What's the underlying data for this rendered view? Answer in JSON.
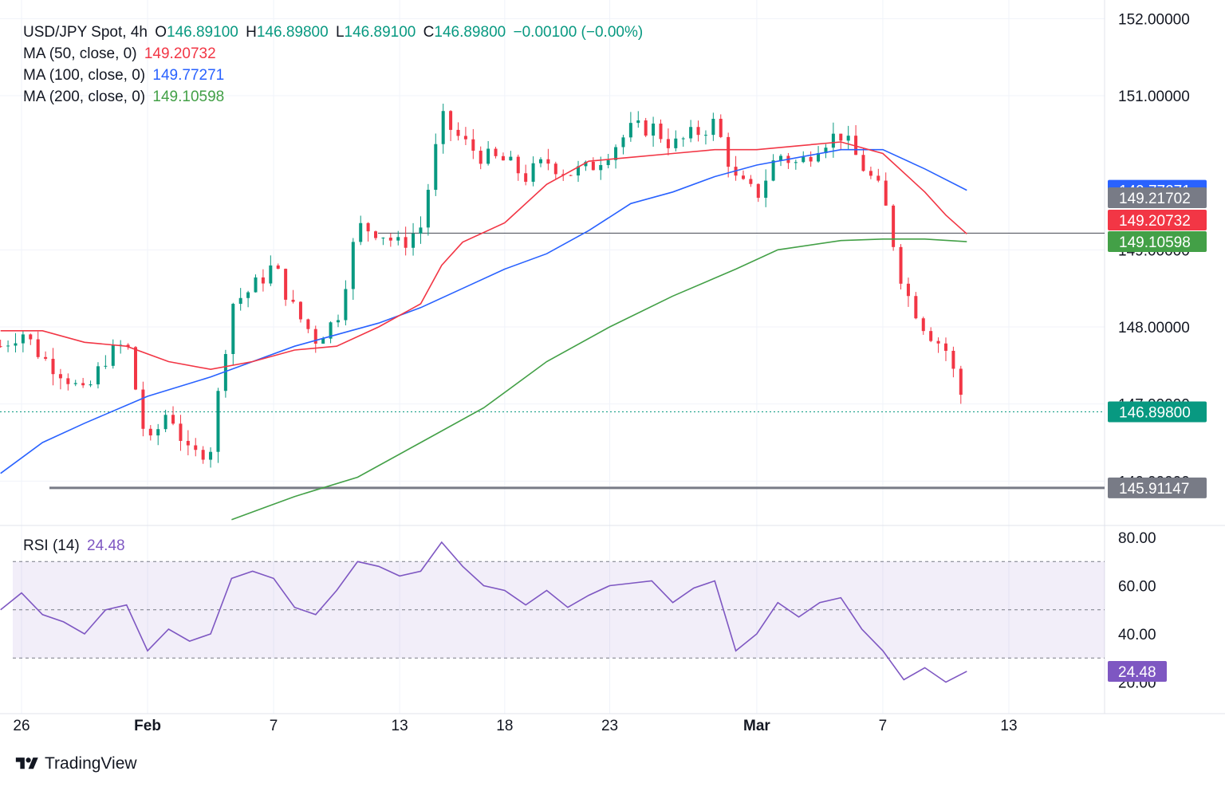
{
  "header": {
    "symbol": "USD/JPY Spot, 4h",
    "o_label": "O",
    "o_val": "146.89100",
    "h_label": "H",
    "h_val": "146.89800",
    "l_label": "L",
    "l_val": "146.89100",
    "c_label": "C",
    "c_val": "146.89800",
    "change": "−0.00100 (−0.00%)"
  },
  "indicators": [
    {
      "label": "MA (50, close, 0)",
      "value": "149.20732",
      "color": "#f23645"
    },
    {
      "label": "MA (100, close, 0)",
      "value": "149.77271",
      "color": "#2962ff"
    },
    {
      "label": "MA (200, close, 0)",
      "value": "149.10598",
      "color": "#43a047"
    }
  ],
  "rsi_label": {
    "label": "RSI (14)",
    "value": "24.48",
    "color": "#7e57c2"
  },
  "brand": "TradingView",
  "colors": {
    "up": "#089981",
    "down": "#f23645",
    "ma50": "#f23645",
    "ma100": "#2962ff",
    "ma200": "#43a047",
    "rsi": "#7e57c2",
    "hline": "#787b86"
  },
  "chart_data": [
    {
      "type": "candlestick",
      "title": "USD/JPY Spot, 4h",
      "y_ticks": [
        "152.00000",
        "151.00000",
        "149.00000",
        "148.00000",
        "147.00000",
        "146.00000"
      ],
      "ylim": [
        145.45,
        152.2
      ],
      "x_ticks": [
        "26",
        "Feb",
        "7",
        "13",
        "18",
        "23",
        "Mar",
        "7",
        "13"
      ],
      "x_tick_dates": [
        "2024-01-26",
        "2024-02-01",
        "2024-02-07",
        "2024-02-13",
        "2024-02-18",
        "2024-02-23",
        "2024-03-01",
        "2024-03-07",
        "2024-03-13"
      ],
      "last_price": 146.898,
      "horizontal_lines": [
        149.217,
        145.91147
      ],
      "price_labels": [
        {
          "text": "149.77271",
          "value": 149.77271,
          "color": "#2962ff"
        },
        {
          "text": "149.21702",
          "value": 149.21702,
          "color": "#787b86"
        },
        {
          "text": "149.20732",
          "value": 149.20732,
          "color": "#f23645"
        },
        {
          "text": "149.10598",
          "value": 149.10598,
          "color": "#43a047"
        },
        {
          "text": "146.89800",
          "value": 146.898,
          "color": "#089981"
        },
        {
          "text": "145.91147",
          "value": 145.91147,
          "color": "#787b86"
        }
      ],
      "close_path": [
        [
          "2024-01-25",
          147.75
        ],
        [
          "2024-01-26",
          147.95
        ],
        [
          "2024-01-27",
          147.6
        ],
        [
          "2024-01-28",
          147.4
        ],
        [
          "2024-01-29",
          147.1
        ],
        [
          "2024-01-30",
          147.6
        ],
        [
          "2024-01-31",
          147.8
        ],
        [
          "2024-02-01",
          146.4
        ],
        [
          "2024-02-02",
          146.95
        ],
        [
          "2024-02-03",
          146.3
        ],
        [
          "2024-02-04",
          146.45
        ],
        [
          "2024-02-05",
          148.3
        ],
        [
          "2024-02-06",
          148.5
        ],
        [
          "2024-02-07",
          148.8
        ],
        [
          "2024-02-08",
          148.2
        ],
        [
          "2024-02-09",
          147.85
        ],
        [
          "2024-02-10",
          148.1
        ],
        [
          "2024-02-11",
          149.3
        ],
        [
          "2024-02-12",
          149.25
        ],
        [
          "2024-02-13",
          149.05
        ],
        [
          "2024-02-14",
          149.3
        ],
        [
          "2024-02-15",
          150.7
        ],
        [
          "2024-02-16",
          150.4
        ],
        [
          "2024-02-17",
          150.2
        ],
        [
          "2024-02-18",
          150.15
        ],
        [
          "2024-02-19",
          149.95
        ],
        [
          "2024-02-20",
          150.15
        ],
        [
          "2024-02-21",
          150.0
        ],
        [
          "2024-02-22",
          150.05
        ],
        [
          "2024-02-23",
          150.3
        ],
        [
          "2024-02-24",
          150.55
        ],
        [
          "2024-02-25",
          150.6
        ],
        [
          "2024-02-26",
          150.35
        ],
        [
          "2024-02-27",
          150.5
        ],
        [
          "2024-02-28",
          150.65
        ],
        [
          "2024-02-29",
          149.9
        ],
        [
          "2024-03-01",
          149.7
        ],
        [
          "2024-03-02",
          150.25
        ],
        [
          "2024-03-03",
          150.1
        ],
        [
          "2024-03-04",
          150.4
        ],
        [
          "2024-03-05",
          150.5
        ],
        [
          "2024-03-06",
          150.1
        ],
        [
          "2024-03-07",
          149.7
        ],
        [
          "2024-03-08",
          148.5
        ],
        [
          "2024-03-09",
          148.0
        ],
        [
          "2024-03-10",
          147.7
        ],
        [
          "2024-03-11",
          146.9
        ]
      ],
      "ma50": [
        [
          "2024-01-25",
          147.95
        ],
        [
          "2024-01-27",
          147.95
        ],
        [
          "2024-01-29",
          147.8
        ],
        [
          "2024-01-31",
          147.75
        ],
        [
          "2024-02-02",
          147.55
        ],
        [
          "2024-02-04",
          147.45
        ],
        [
          "2024-02-06",
          147.55
        ],
        [
          "2024-02-08",
          147.7
        ],
        [
          "2024-02-10",
          147.75
        ],
        [
          "2024-02-12",
          148.0
        ],
        [
          "2024-02-14",
          148.3
        ],
        [
          "2024-02-15",
          148.8
        ],
        [
          "2024-02-16",
          149.1
        ],
        [
          "2024-02-18",
          149.35
        ],
        [
          "2024-02-20",
          149.85
        ],
        [
          "2024-02-22",
          150.15
        ],
        [
          "2024-02-24",
          150.2
        ],
        [
          "2024-02-26",
          150.25
        ],
        [
          "2024-02-28",
          150.3
        ],
        [
          "2024-03-01",
          150.3
        ],
        [
          "2024-03-03",
          150.35
        ],
        [
          "2024-03-05",
          150.4
        ],
        [
          "2024-03-07",
          150.25
        ],
        [
          "2024-03-09",
          149.75
        ],
        [
          "2024-03-10",
          149.45
        ],
        [
          "2024-03-11",
          149.207
        ]
      ],
      "ma100": [
        [
          "2024-01-25",
          146.1
        ],
        [
          "2024-01-27",
          146.5
        ],
        [
          "2024-01-29",
          146.75
        ],
        [
          "2024-02-01",
          147.1
        ],
        [
          "2024-02-04",
          147.35
        ],
        [
          "2024-02-06",
          147.55
        ],
        [
          "2024-02-08",
          147.75
        ],
        [
          "2024-02-10",
          147.9
        ],
        [
          "2024-02-12",
          148.05
        ],
        [
          "2024-02-14",
          148.25
        ],
        [
          "2024-02-16",
          148.5
        ],
        [
          "2024-02-18",
          148.75
        ],
        [
          "2024-02-20",
          148.95
        ],
        [
          "2024-02-22",
          149.25
        ],
        [
          "2024-02-24",
          149.6
        ],
        [
          "2024-02-26",
          149.75
        ],
        [
          "2024-02-28",
          149.95
        ],
        [
          "2024-03-01",
          150.1
        ],
        [
          "2024-03-03",
          150.2
        ],
        [
          "2024-03-05",
          150.3
        ],
        [
          "2024-03-07",
          150.3
        ],
        [
          "2024-03-09",
          150.05
        ],
        [
          "2024-03-11",
          149.773
        ]
      ],
      "ma200": [
        [
          "2024-02-05",
          145.5
        ],
        [
          "2024-02-08",
          145.8
        ],
        [
          "2024-02-11",
          146.05
        ],
        [
          "2024-02-14",
          146.5
        ],
        [
          "2024-02-17",
          146.95
        ],
        [
          "2024-02-20",
          147.55
        ],
        [
          "2024-02-23",
          148.0
        ],
        [
          "2024-02-26",
          148.4
        ],
        [
          "2024-02-29",
          148.75
        ],
        [
          "2024-03-02",
          149.0
        ],
        [
          "2024-03-05",
          149.12
        ],
        [
          "2024-03-07",
          149.14
        ],
        [
          "2024-03-09",
          149.14
        ],
        [
          "2024-03-11",
          149.106
        ]
      ]
    },
    {
      "type": "line",
      "title": "RSI (14)",
      "y_ticks": [
        "80.00",
        "60.00",
        "40.00",
        "20.00"
      ],
      "ylim": [
        10,
        85
      ],
      "bands": [
        30,
        50,
        70
      ],
      "last_value": 24.48,
      "series": [
        {
          "values": [
            [
              "2024-01-25",
              50
            ],
            [
              "2024-01-26",
              57
            ],
            [
              "2024-01-27",
              48
            ],
            [
              "2024-01-28",
              45
            ],
            [
              "2024-01-29",
              40
            ],
            [
              "2024-01-30",
              50
            ],
            [
              "2024-01-31",
              52
            ],
            [
              "2024-02-01",
              33
            ],
            [
              "2024-02-02",
              42
            ],
            [
              "2024-02-03",
              37
            ],
            [
              "2024-02-04",
              40
            ],
            [
              "2024-02-05",
              63
            ],
            [
              "2024-02-06",
              66
            ],
            [
              "2024-02-07",
              63
            ],
            [
              "2024-02-08",
              51
            ],
            [
              "2024-02-09",
              48
            ],
            [
              "2024-02-10",
              58
            ],
            [
              "2024-02-11",
              70
            ],
            [
              "2024-02-12",
              68
            ],
            [
              "2024-02-13",
              64
            ],
            [
              "2024-02-14",
              66
            ],
            [
              "2024-02-15",
              78
            ],
            [
              "2024-02-16",
              68
            ],
            [
              "2024-02-17",
              60
            ],
            [
              "2024-02-18",
              58
            ],
            [
              "2024-02-19",
              52
            ],
            [
              "2024-02-20",
              58
            ],
            [
              "2024-02-21",
              51
            ],
            [
              "2024-02-22",
              56
            ],
            [
              "2024-02-23",
              60
            ],
            [
              "2024-02-24",
              61
            ],
            [
              "2024-02-25",
              62
            ],
            [
              "2024-02-26",
              53
            ],
            [
              "2024-02-27",
              59
            ],
            [
              "2024-02-28",
              62
            ],
            [
              "2024-02-29",
              33
            ],
            [
              "2024-03-01",
              40
            ],
            [
              "2024-03-02",
              53
            ],
            [
              "2024-03-03",
              47
            ],
            [
              "2024-03-04",
              53
            ],
            [
              "2024-03-05",
              55
            ],
            [
              "2024-03-06",
              42
            ],
            [
              "2024-03-07",
              33
            ],
            [
              "2024-03-08",
              21
            ],
            [
              "2024-03-09",
              26
            ],
            [
              "2024-03-10",
              20
            ],
            [
              "2024-03-11",
              24.48
            ]
          ]
        }
      ]
    }
  ]
}
